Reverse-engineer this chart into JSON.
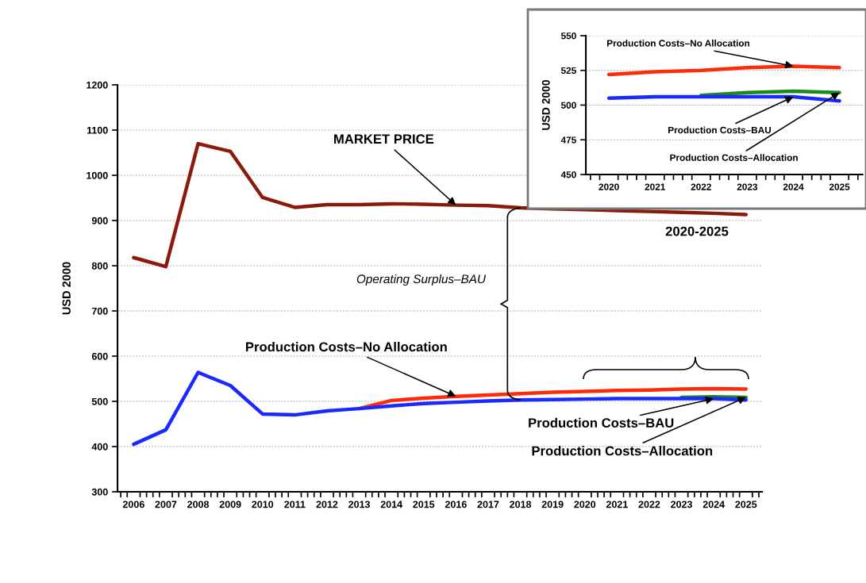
{
  "chart_data": [
    {
      "type": "line",
      "ylabel": "USD 2000",
      "categories": [
        "2006",
        "2007",
        "2008",
        "2009",
        "2010",
        "2011",
        "2012",
        "2013",
        "2014",
        "2015",
        "2016",
        "2017",
        "2018",
        "2019",
        "2020",
        "2021",
        "2022",
        "2023",
        "2024",
        "2025"
      ],
      "series": [
        {
          "color": "#8b1a0a",
          "values": [
            818,
            798,
            1070,
            1053,
            951,
            929,
            935,
            935,
            937,
            936,
            934,
            933,
            928,
            926,
            924,
            922,
            920,
            918,
            916,
            913
          ]
        },
        {
          "color": "#ff2a0a",
          "values": [
            null,
            null,
            null,
            null,
            null,
            null,
            null,
            484,
            502,
            507,
            511,
            514,
            517,
            520,
            522,
            524,
            525,
            527,
            528,
            527
          ]
        },
        {
          "color": "#1a8a1a",
          "values": [
            null,
            null,
            null,
            null,
            null,
            null,
            null,
            null,
            null,
            null,
            null,
            null,
            null,
            null,
            null,
            null,
            null,
            509,
            510,
            509
          ]
        },
        {
          "color": "#1a2aff",
          "values": [
            405,
            437,
            564,
            535,
            472,
            470,
            479,
            484,
            490,
            495,
            498,
            501,
            503,
            504,
            505,
            506,
            506,
            506,
            506,
            503
          ]
        }
      ],
      "ylim": [
        300,
        1200
      ],
      "yticks": [
        300,
        400,
        500,
        600,
        700,
        800,
        900,
        1000,
        1100,
        1200
      ],
      "grid": "y",
      "annotations": [
        {
          "text": "MARKET PRICE",
          "x": "2016",
          "y": 934
        },
        {
          "text": "Production Costs–No Allocation",
          "x": "2016",
          "y": 511
        },
        "Operating Surplus–BAU",
        {
          "text": "Production Costs–BAU",
          "x": "2024",
          "y": 506
        },
        {
          "text": "Production Costs–Allocation",
          "x": "2025",
          "y": 509
        },
        "2020-2025"
      ]
    },
    {
      "type": "line",
      "ylabel": "USD 2000",
      "categories": [
        "2020",
        "2021",
        "2022",
        "2023",
        "2024",
        "2025"
      ],
      "series": [
        {
          "color": "#ff2a0a",
          "values": [
            522,
            524,
            525,
            527,
            528,
            527
          ]
        },
        {
          "color": "#1a8a1a",
          "values": [
            null,
            null,
            507,
            509,
            510,
            509
          ]
        },
        {
          "color": "#1a2aff",
          "values": [
            505,
            506,
            506,
            506,
            506,
            503
          ]
        }
      ],
      "ylim": [
        450,
        550
      ],
      "yticks": [
        450,
        475,
        500,
        525,
        550
      ],
      "grid": "y",
      "annotations": [
        {
          "text": "Production Costs–No Allocation",
          "x": "2024",
          "y": 528
        },
        {
          "text": "Production Costs–BAU",
          "x": "2024",
          "y": 506
        },
        {
          "text": "Production Costs–Allocation",
          "x": "2025",
          "y": 509
        }
      ]
    }
  ]
}
